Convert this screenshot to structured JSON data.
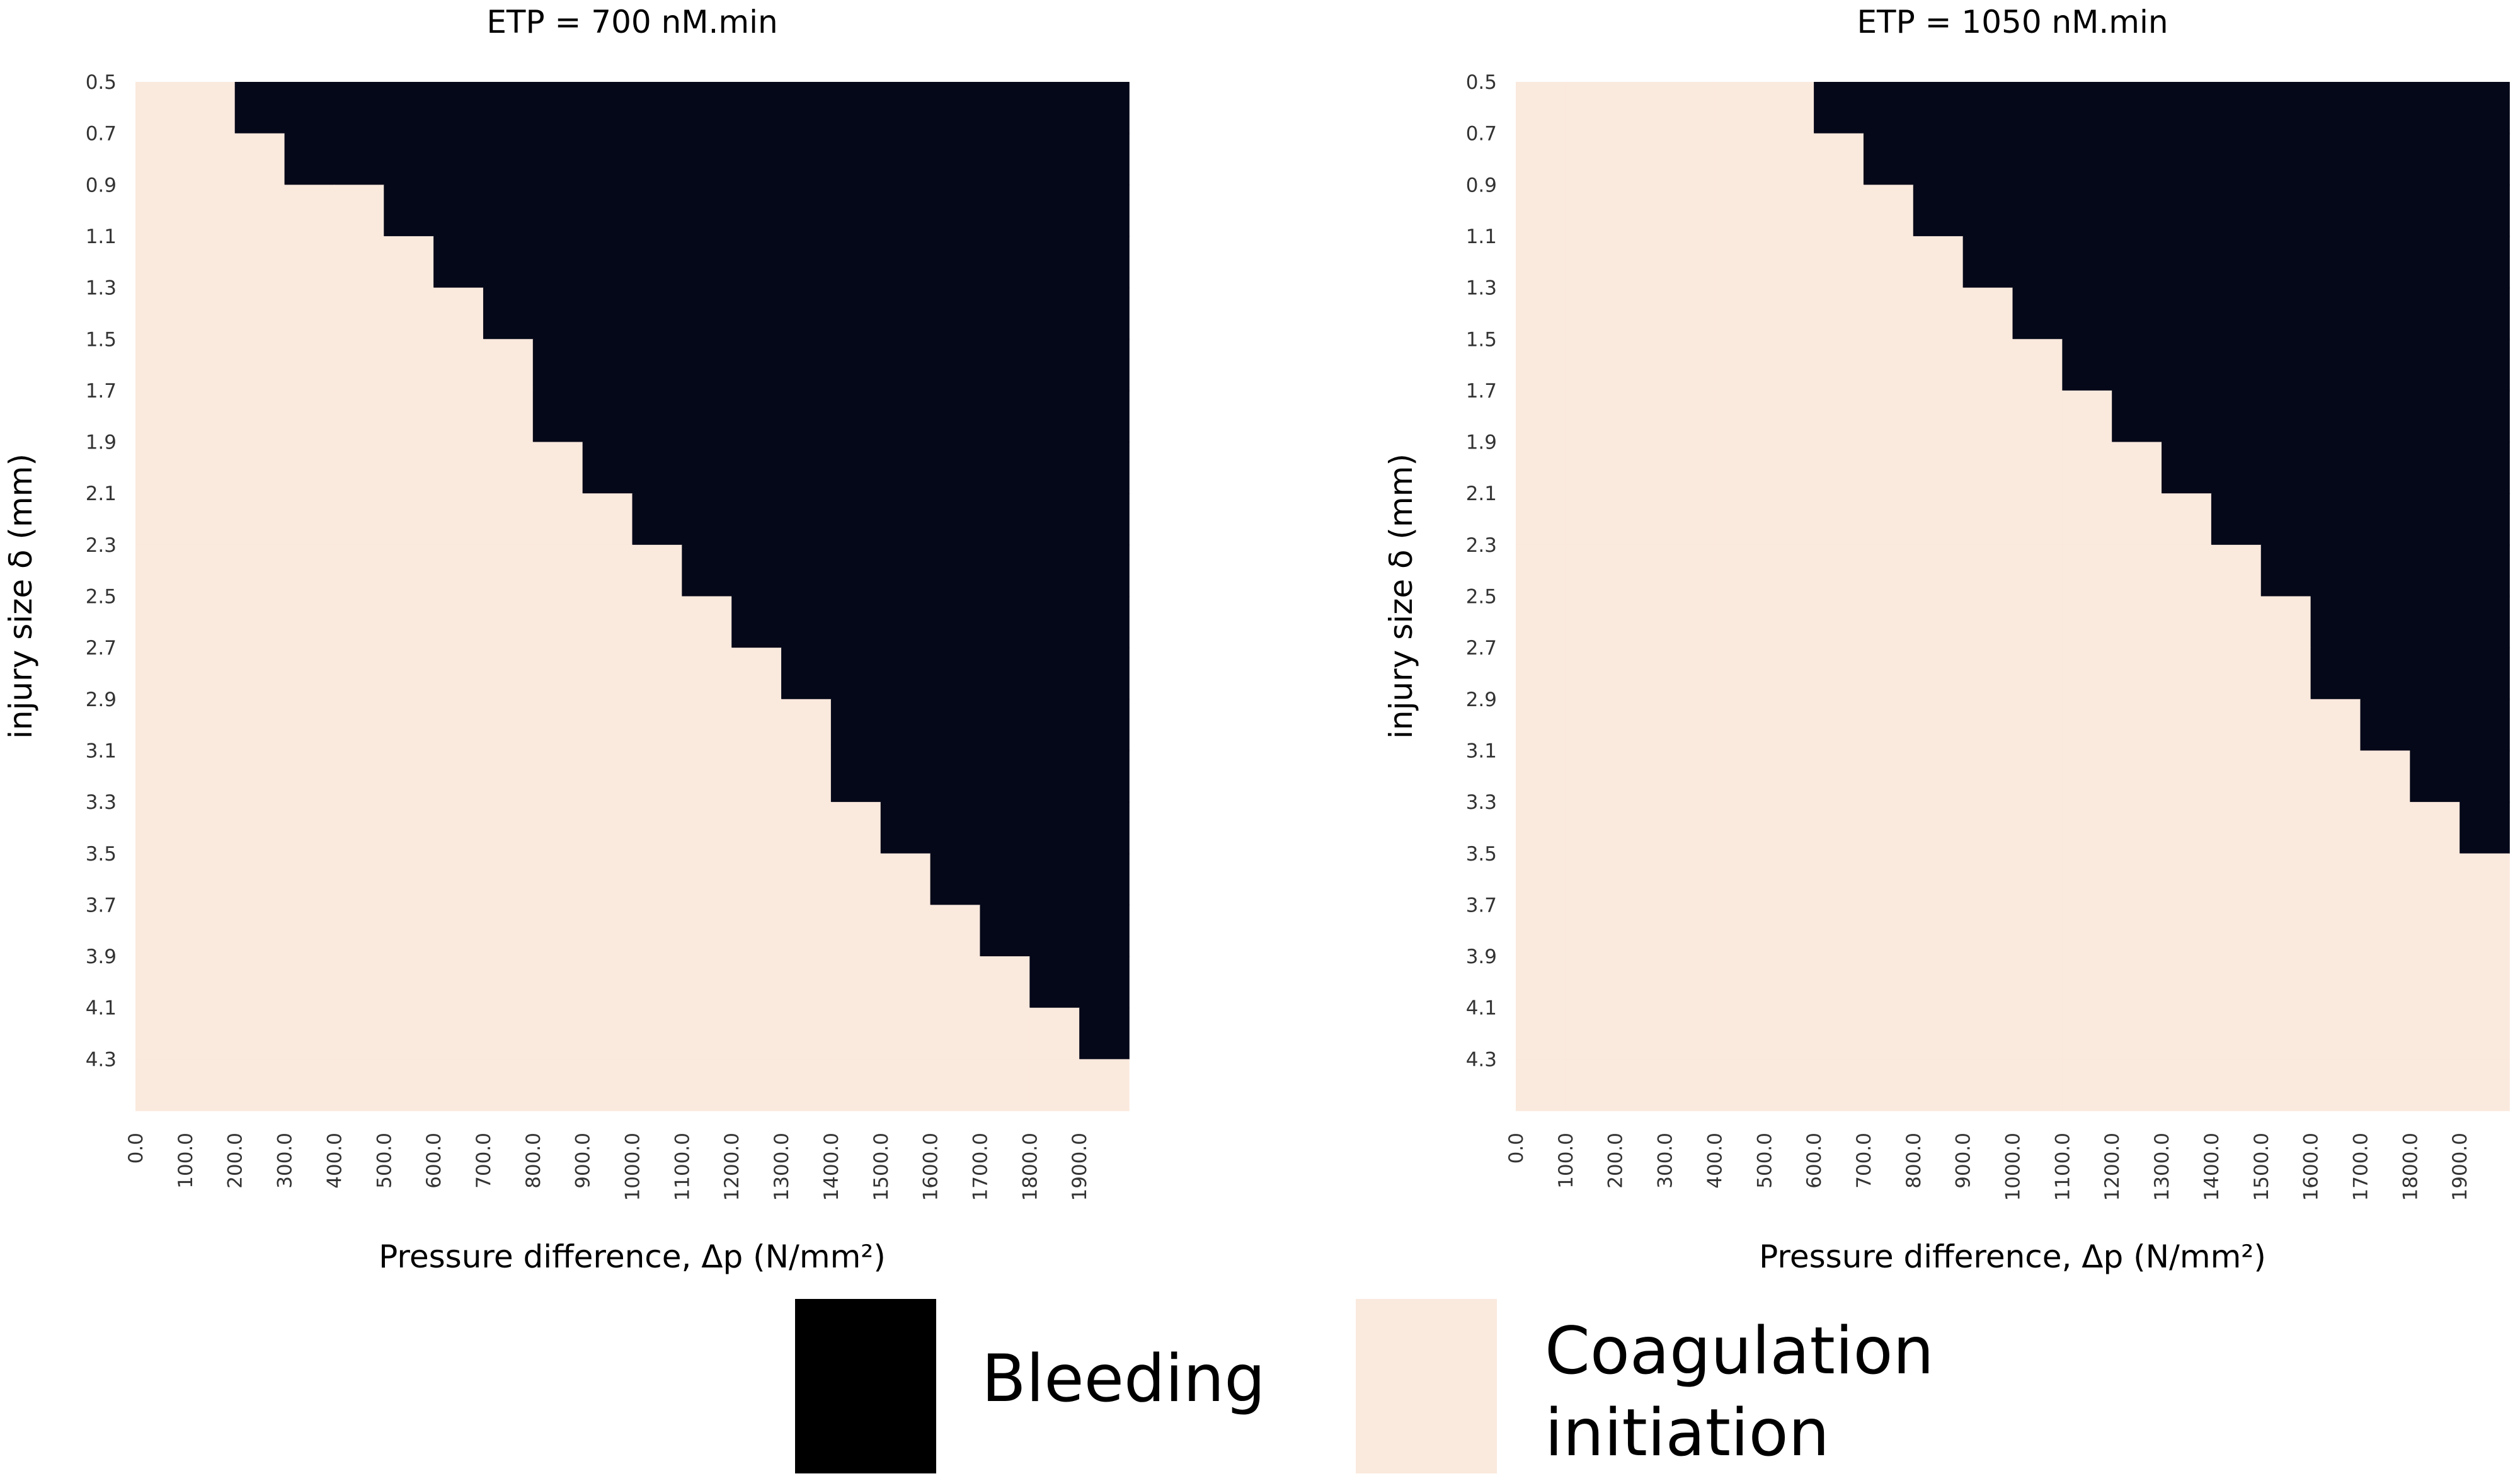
{
  "colors": {
    "bleeding": "#050818",
    "coagulation": "#FAE9DD",
    "text": "#000000",
    "tick_text": "#333333"
  },
  "chart_data": [
    {
      "type": "heatmap",
      "title": "ETP = 700 nM.min",
      "xlabel": "Pressure difference, Δp (N/mm²)",
      "ylabel": "injury size δ (mm)",
      "x_ticks": [
        "0.0",
        "100.0",
        "200.0",
        "300.0",
        "400.0",
        "500.0",
        "600.0",
        "700.0",
        "800.0",
        "900.0",
        "1000.0",
        "1100.0",
        "1200.0",
        "1300.0",
        "1400.0",
        "1500.0",
        "1600.0",
        "1700.0",
        "1800.0",
        "1900.0"
      ],
      "y_ticks": [
        "0.5",
        "0.7",
        "0.9",
        "1.1",
        "1.3",
        "1.5",
        "1.7",
        "1.9",
        "2.1",
        "2.3",
        "2.5",
        "2.7",
        "2.9",
        "3.1",
        "3.3",
        "3.5",
        "3.7",
        "3.9",
        "4.1",
        "4.3"
      ],
      "x_range": [
        0,
        2000
      ],
      "y_range": [
        0.4,
        4.4
      ],
      "boundary_note": "bleeding when pressure >= threshold for given injury size",
      "bleeding_threshold_pressure": [
        200,
        300,
        500,
        600,
        700,
        800,
        800,
        900,
        1000,
        1100,
        1200,
        1300,
        1400,
        1400,
        1500,
        1600,
        1700,
        1800,
        1900,
        null
      ]
    },
    {
      "type": "heatmap",
      "title": "ETP = 1050 nM.min",
      "xlabel": "Pressure difference, Δp (N/mm²)",
      "ylabel": "injury size δ (mm)",
      "x_ticks": [
        "0.0",
        "100.0",
        "200.0",
        "300.0",
        "400.0",
        "500.0",
        "600.0",
        "700.0",
        "800.0",
        "900.0",
        "1000.0",
        "1100.0",
        "1200.0",
        "1300.0",
        "1400.0",
        "1500.0",
        "1600.0",
        "1700.0",
        "1800.0",
        "1900.0"
      ],
      "y_ticks": [
        "0.5",
        "0.7",
        "0.9",
        "1.1",
        "1.3",
        "1.5",
        "1.7",
        "1.9",
        "2.1",
        "2.3",
        "2.5",
        "2.7",
        "2.9",
        "3.1",
        "3.3",
        "3.5",
        "3.7",
        "3.9",
        "4.1",
        "4.3"
      ],
      "x_range": [
        0,
        2000
      ],
      "y_range": [
        0.4,
        4.4
      ],
      "boundary_note": "bleeding when pressure >= threshold for given injury size",
      "bleeding_threshold_pressure": [
        600,
        700,
        800,
        900,
        1000,
        1100,
        1200,
        1300,
        1400,
        1500,
        1600,
        1600,
        1700,
        1800,
        1900,
        null,
        null,
        null,
        null,
        null
      ]
    }
  ],
  "legend": {
    "bleeding_label": "Bleeding",
    "coagulation_line1": "Coagulation",
    "coagulation_line2": "initiation"
  }
}
